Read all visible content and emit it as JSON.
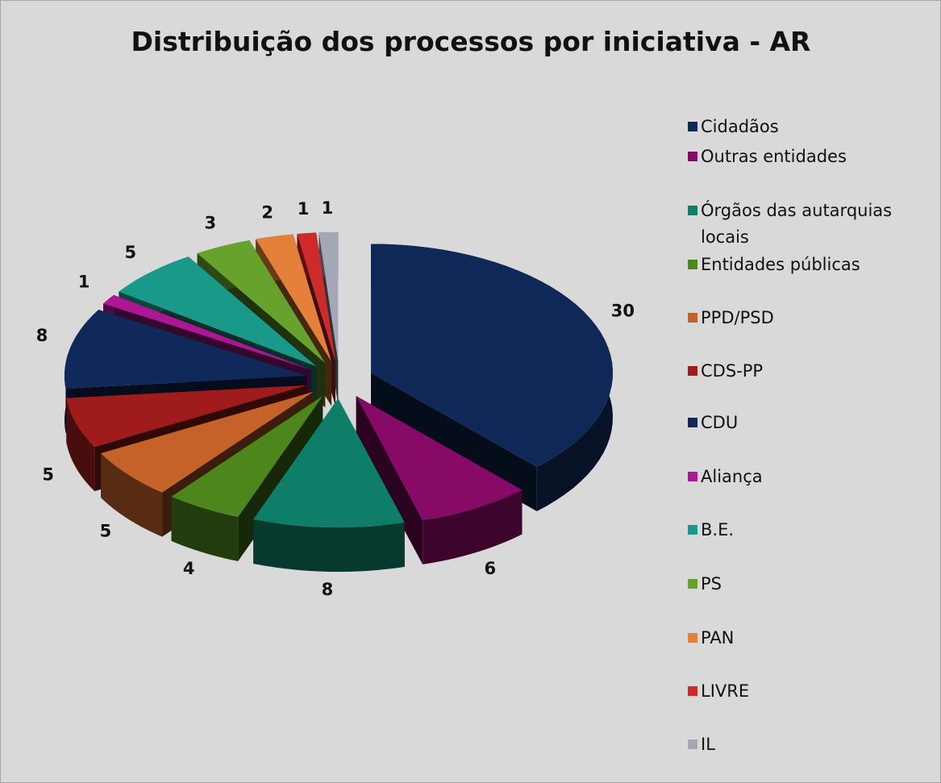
{
  "chart_data": {
    "type": "pie3d",
    "title": "Distribuição dos processos por iniciativa - AR",
    "categories": [
      "Cidadãos",
      "Outras entidades",
      "Órgãos das autarquias locais",
      "Entidades públicas",
      "PPD/PSD",
      "CDS-PP",
      "CDU",
      "Aliança",
      "B.E.",
      "PS",
      "PAN",
      "LIVRE",
      "IL"
    ],
    "values": [
      30,
      6,
      8,
      4,
      5,
      5,
      8,
      1,
      5,
      3,
      2,
      1,
      1
    ],
    "colors": [
      "#0f2857",
      "#870a66",
      "#0f7e68",
      "#4d861c",
      "#c4622a",
      "#a01c1c",
      "#10295a",
      "#ae1696",
      "#19998a",
      "#66a22c",
      "#e5803a",
      "#cf2a2a",
      "#a4a7b6"
    ],
    "legend": "right"
  }
}
